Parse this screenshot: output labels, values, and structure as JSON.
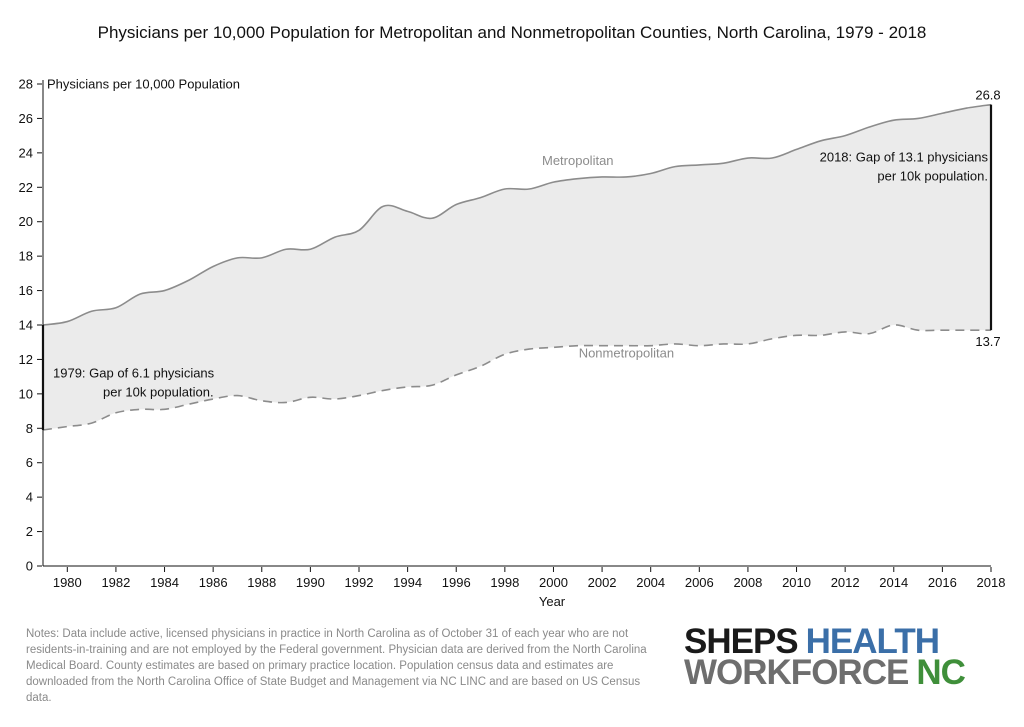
{
  "chart_data": {
    "type": "area",
    "title": "Physicians per 10,000 Population for Metropolitan and Nonmetropolitan Counties, North Carolina, 1979 - 2018",
    "xlabel": "Year",
    "ylabel": "Physicians per 10,000 Population",
    "xlim": [
      1979,
      2018
    ],
    "ylim": [
      0,
      28
    ],
    "x_ticks": [
      1980,
      1982,
      1984,
      1986,
      1988,
      1990,
      1992,
      1994,
      1996,
      1998,
      2000,
      2002,
      2004,
      2006,
      2008,
      2010,
      2012,
      2014,
      2016,
      2018
    ],
    "y_ticks": [
      0,
      2,
      4,
      6,
      8,
      10,
      12,
      14,
      16,
      18,
      20,
      22,
      24,
      26,
      28
    ],
    "x": [
      1979,
      1980,
      1981,
      1982,
      1983,
      1984,
      1985,
      1986,
      1987,
      1988,
      1989,
      1990,
      1991,
      1992,
      1993,
      1994,
      1995,
      1996,
      1997,
      1998,
      1999,
      2000,
      2001,
      2002,
      2003,
      2004,
      2005,
      2006,
      2007,
      2008,
      2009,
      2010,
      2011,
      2012,
      2013,
      2014,
      2015,
      2016,
      2017,
      2018
    ],
    "series": [
      {
        "name": "Metropolitan",
        "color": "#8c8c8c",
        "dash": false,
        "values": [
          14.0,
          14.2,
          14.8,
          15.0,
          15.8,
          16.0,
          16.6,
          17.4,
          17.9,
          17.9,
          18.4,
          18.4,
          19.1,
          19.5,
          20.9,
          20.6,
          20.2,
          21.0,
          21.4,
          21.9,
          21.9,
          22.3,
          22.5,
          22.6,
          22.6,
          22.8,
          23.2,
          23.3,
          23.4,
          23.7,
          23.7,
          24.2,
          24.7,
          25.0,
          25.5,
          25.9,
          26.0,
          26.3,
          26.6,
          26.8
        ]
      },
      {
        "name": "Nonmetropolitan",
        "color": "#8c8c8c",
        "dash": true,
        "values": [
          7.9,
          8.1,
          8.3,
          8.9,
          9.1,
          9.1,
          9.4,
          9.7,
          9.9,
          9.6,
          9.5,
          9.8,
          9.7,
          9.9,
          10.2,
          10.4,
          10.5,
          11.1,
          11.6,
          12.3,
          12.6,
          12.7,
          12.8,
          12.8,
          12.8,
          12.8,
          12.9,
          12.8,
          12.9,
          12.9,
          13.2,
          13.4,
          13.4,
          13.6,
          13.5,
          14.0,
          13.7,
          13.7,
          13.7,
          13.7
        ]
      }
    ],
    "fill_between_color": "#ebebeb",
    "series_labels": [
      {
        "text": "Metropolitan",
        "x": 2001,
        "y": 23.3
      },
      {
        "text": "Nonmetropolitan",
        "x": 2003,
        "y": 12.1
      }
    ],
    "annotations": [
      {
        "lines": [
          "1979: Gap of 6.1 physicians",
          "per 10k population."
        ],
        "x": 1979,
        "y_from": 7.9,
        "y_to": 14.0
      },
      {
        "lines": [
          "2018: Gap of 13.1 physicians",
          "per 10k population."
        ],
        "x": 2018,
        "y_from": 13.7,
        "y_to": 26.8
      }
    ],
    "end_labels": [
      {
        "text": "26.8",
        "x": 2018,
        "y": 26.8,
        "position": "above"
      },
      {
        "text": "13.7",
        "x": 2018,
        "y": 13.7,
        "position": "below"
      }
    ]
  },
  "notes": "Notes: Data include active, licensed physicians in practice in North Carolina as of October 31 of each year who are not residents-in-training and are not employed by the Federal government. Physician data are derived from the North Carolina Medical Board. County estimates are based on primary practice location. Population census data and estimates are downloaded from the North Carolina Office of State Budget and Management via NC LINC and are based on US Census data.",
  "logo": {
    "word1": "SHEPS",
    "word2": "HEALTH",
    "word3": "WORKFORCE",
    "word4": "NC",
    "color_dark": "#1a1a1a",
    "color_blue": "#3b6fa8",
    "color_gray": "#6e6e6e",
    "color_green": "#3f8f3a"
  }
}
